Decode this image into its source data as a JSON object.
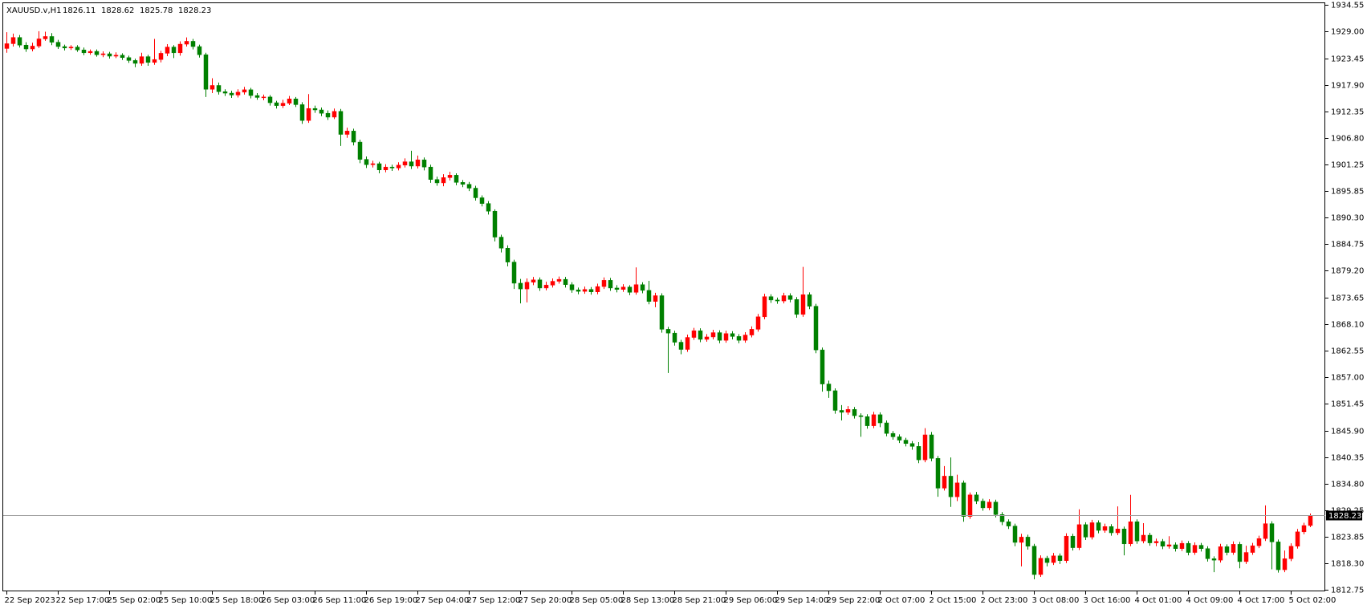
{
  "chart_data": {
    "type": "candlestick",
    "title": "XAUUSD.v,H1",
    "up_color": "#ff0000",
    "down_color": "#008000",
    "grid": false,
    "ylim": [
      1812.4,
      1935.1
    ],
    "yticks": [
      1934.55,
      {
        "value": 1929,
        "label": "1929.00"
      },
      1923.45,
      {
        "value": 1917.9,
        "label": "1917.90"
      },
      1912.35,
      {
        "value": 1906.8,
        "label": "1906.80"
      },
      1901.25,
      1895.85,
      {
        "value": 1890.3,
        "label": "1890.30"
      },
      1884.75,
      {
        "value": 1879.2,
        "label": "1879.20"
      },
      1873.65,
      {
        "value": 1868.1,
        "label": "1868.10"
      },
      1862.55,
      {
        "value": 1857,
        "label": "1857.00"
      },
      1851.45,
      {
        "value": 1845.9,
        "label": "1845.90"
      },
      1840.35,
      {
        "value": 1834.8,
        "label": "1834.80"
      },
      1829.25,
      1823.85,
      {
        "value": 1818.3,
        "label": "1818.30"
      },
      1812.75
    ],
    "categories": [
      "22 Sep 2023",
      null,
      null,
      null,
      null,
      null,
      null,
      null,
      "22 Sep 17:00",
      null,
      null,
      null,
      null,
      null,
      null,
      null,
      "25 Sep 02:00",
      null,
      null,
      null,
      null,
      null,
      null,
      null,
      "25 Sep 10:00",
      null,
      null,
      null,
      null,
      null,
      null,
      null,
      "25 Sep 18:00",
      null,
      null,
      null,
      null,
      null,
      null,
      null,
      "26 Sep 03:00",
      null,
      null,
      null,
      null,
      null,
      null,
      null,
      "26 Sep 11:00",
      null,
      null,
      null,
      null,
      null,
      null,
      null,
      "26 Sep 19:00",
      null,
      null,
      null,
      null,
      null,
      null,
      null,
      "27 Sep 04:00",
      null,
      null,
      null,
      null,
      null,
      null,
      null,
      "27 Sep 12:00",
      null,
      null,
      null,
      null,
      null,
      null,
      null,
      "27 Sep 20:00",
      null,
      null,
      null,
      null,
      null,
      null,
      null,
      "28 Sep 05:00",
      null,
      null,
      null,
      null,
      null,
      null,
      null,
      "28 Sep 13:00",
      null,
      null,
      null,
      null,
      null,
      null,
      null,
      "28 Sep 21:00",
      null,
      null,
      null,
      null,
      null,
      null,
      null,
      "29 Sep 06:00",
      null,
      null,
      null,
      null,
      null,
      null,
      null,
      "29 Sep 14:00",
      null,
      null,
      null,
      null,
      null,
      null,
      null,
      "29 Sep 22:00",
      null,
      null,
      null,
      null,
      null,
      null,
      null,
      "2 Oct 07:00",
      null,
      null,
      null,
      null,
      null,
      null,
      null,
      "2 Oct 15:00",
      null,
      null,
      null,
      null,
      null,
      null,
      null,
      "2 Oct 23:00",
      null,
      null,
      null,
      null,
      null,
      null,
      null,
      "3 Oct 08:00",
      null,
      null,
      null,
      null,
      null,
      null,
      null,
      "3 Oct 16:00",
      null,
      null,
      null,
      null,
      null,
      null,
      null,
      "4 Oct 01:00",
      null,
      null,
      null,
      null,
      null,
      null,
      null,
      "4 Oct 09:00",
      null,
      null,
      null,
      null,
      null,
      null,
      null,
      "4 Oct 17:00",
      null,
      null,
      null,
      null,
      null,
      null,
      null,
      "5 Oct 02:00",
      null,
      null,
      null
    ],
    "open": [
      1925.5,
      1926.5,
      1927.8,
      1926.2,
      1925.4,
      1926.0,
      1927.5,
      1928.0,
      1926.8,
      1925.9,
      1925.6,
      1925.8,
      1925.2,
      1924.6,
      1924.9,
      1924.2,
      1924.4,
      1923.9,
      1924.1,
      1923.6,
      1923.0,
      1922.4,
      1923.8,
      1922.6,
      1923.2,
      1924.5,
      1925.8,
      1924.6,
      1926.4,
      1927.0,
      1925.9,
      1924.2,
      1917.0,
      1917.8,
      1916.5,
      1916.2,
      1915.8,
      1916.4,
      1916.9,
      1915.7,
      1915.3,
      1915.4,
      1914.2,
      1913.6,
      1914.1,
      1915.0,
      1913.8,
      1910.5,
      1913.0,
      1912.7,
      1912.0,
      1911.2,
      1912.4,
      1907.6,
      1908.3,
      1906.0,
      1902.4,
      1901.3,
      1901.5,
      1900.2,
      1900.8,
      1900.6,
      1901.2,
      1901.9,
      1901.0,
      1902.3,
      1900.8,
      1898.2,
      1897.5,
      1898.6,
      1899.1,
      1897.6,
      1897.2,
      1896.4,
      1894.4,
      1893.2,
      1891.6,
      1886.2,
      1883.9,
      1881.0,
      1876.6,
      1875.4,
      1876.8,
      1877.3,
      1875.6,
      1876.2,
      1877.0,
      1877.4,
      1876.3,
      1875.2,
      1874.9,
      1875.3,
      1874.8,
      1875.9,
      1877.2,
      1875.6,
      1875.3,
      1875.8,
      1874.7,
      1876.3,
      1875.1,
      1872.8,
      1874.0,
      1867.0,
      1866.2,
      1864.3,
      1862.8,
      1865.3,
      1866.7,
      1864.9,
      1865.4,
      1866.3,
      1864.7,
      1866.1,
      1865.5,
      1864.7,
      1865.8,
      1867.0,
      1869.6,
      1873.8,
      1873.1,
      1872.9,
      1874.0,
      1873.2,
      1870.1,
      1874.2,
      1871.8,
      1862.7,
      1855.6,
      1854.2,
      1850.1,
      1849.7,
      1850.3,
      1849.0,
      1848.8,
      1846.9,
      1849.2,
      1847.5,
      1845.3,
      1844.6,
      1843.9,
      1843.2,
      1842.6,
      1839.8,
      1845.0,
      1840.1,
      1833.9,
      1836.4,
      1832.1,
      1835.0,
      1828.0,
      1832.5,
      1831.2,
      1829.8,
      1831.0,
      1828.4,
      1826.9,
      1826.0,
      1822.6,
      1823.7,
      1821.8,
      1815.9,
      1819.3,
      1818.4,
      1819.8,
      1818.8,
      1823.9,
      1821.5,
      1826.3,
      1823.7,
      1826.7,
      1825.1,
      1825.9,
      1824.6,
      1825.4,
      1822.3,
      1826.9,
      1822.9,
      1824.1,
      1822.5,
      1822.8,
      1821.8,
      1822.1,
      1821.3,
      1822.4,
      1820.5,
      1822.0,
      1821.3,
      1819.2,
      1818.9,
      1821.7,
      1820.5,
      1822.2,
      1818.6,
      1820.5,
      1821.9,
      1823.4,
      1826.5,
      1822.7,
      1816.9,
      1819.2,
      1821.8,
      1824.8,
      1826.11
    ],
    "high": [
      1928.9,
      1928.6,
      1928.3,
      1926.8,
      1926.7,
      1929.1,
      1929.0,
      1928.7,
      1927.3,
      1926.3,
      1926.2,
      1926.2,
      1925.7,
      1925.3,
      1925.3,
      1924.9,
      1924.8,
      1924.7,
      1924.5,
      1924.0,
      1923.4,
      1924.6,
      1924.2,
      1927.5,
      1925.0,
      1926.4,
      1926.2,
      1927.0,
      1927.8,
      1927.5,
      1926.3,
      1924.6,
      1919.3,
      1918.4,
      1917.0,
      1916.7,
      1917.0,
      1917.5,
      1917.3,
      1916.2,
      1915.9,
      1915.8,
      1914.6,
      1914.8,
      1915.6,
      1915.4,
      1914.3,
      1916.0,
      1913.6,
      1913.2,
      1912.6,
      1913.0,
      1912.9,
      1909.0,
      1908.8,
      1906.5,
      1903.0,
      1902.1,
      1901.9,
      1901.4,
      1901.3,
      1901.8,
      1902.6,
      1904.2,
      1903.2,
      1902.8,
      1901.3,
      1898.8,
      1899.3,
      1899.8,
      1899.5,
      1898.1,
      1897.7,
      1896.9,
      1894.9,
      1893.7,
      1892.0,
      1886.7,
      1884.5,
      1881.5,
      1877.5,
      1877.6,
      1877.9,
      1877.8,
      1876.9,
      1877.6,
      1878.0,
      1877.9,
      1876.8,
      1875.7,
      1875.9,
      1875.8,
      1876.5,
      1877.8,
      1877.7,
      1876.2,
      1876.4,
      1876.2,
      1879.9,
      1876.8,
      1877.1,
      1874.6,
      1874.5,
      1867.5,
      1866.7,
      1864.8,
      1865.9,
      1867.3,
      1867.2,
      1866.0,
      1866.9,
      1866.8,
      1866.7,
      1866.6,
      1866.0,
      1866.4,
      1867.6,
      1870.2,
      1874.4,
      1874.3,
      1873.6,
      1874.6,
      1874.5,
      1873.7,
      1880.0,
      1874.7,
      1872.3,
      1863.2,
      1856.3,
      1854.7,
      1851.2,
      1851.0,
      1850.8,
      1849.5,
      1849.3,
      1849.8,
      1849.7,
      1848.0,
      1845.8,
      1845.1,
      1844.4,
      1843.7,
      1843.5,
      1846.4,
      1845.6,
      1840.6,
      1838.5,
      1840.3,
      1836.7,
      1835.5,
      1833.0,
      1833.1,
      1831.7,
      1831.6,
      1831.5,
      1828.9,
      1827.4,
      1826.5,
      1824.4,
      1824.2,
      1822.3,
      1819.9,
      1819.8,
      1820.4,
      1820.3,
      1824.5,
      1824.4,
      1829.5,
      1826.8,
      1827.3,
      1827.2,
      1826.5,
      1826.4,
      1830.1,
      1825.9,
      1832.5,
      1827.4,
      1826.6,
      1824.6,
      1823.4,
      1823.3,
      1823.9,
      1822.6,
      1823.0,
      1822.9,
      1822.6,
      1822.5,
      1821.8,
      1819.7,
      1822.3,
      1822.2,
      1822.8,
      1822.7,
      1821.9,
      1822.5,
      1824.0,
      1830.3,
      1827.0,
      1823.2,
      1820.9,
      1822.4,
      1825.4,
      1826.7,
      1828.62
    ],
    "low": [
      1924.6,
      1925.9,
      1925.7,
      1924.8,
      1924.9,
      1925.6,
      1927.1,
      1926.2,
      1925.4,
      1925.1,
      1925.2,
      1924.8,
      1924.1,
      1924.2,
      1923.8,
      1923.7,
      1923.4,
      1923.5,
      1923.1,
      1922.5,
      1921.6,
      1921.9,
      1921.9,
      1922.1,
      1922.6,
      1923.9,
      1923.5,
      1924.0,
      1925.9,
      1925.3,
      1923.6,
      1915.4,
      1916.2,
      1915.9,
      1915.6,
      1915.2,
      1915.3,
      1915.9,
      1915.1,
      1914.8,
      1914.7,
      1913.6,
      1913.0,
      1913.1,
      1913.7,
      1913.3,
      1909.8,
      1910.0,
      1912.1,
      1911.4,
      1910.6,
      1910.8,
      1905.2,
      1906.9,
      1905.3,
      1901.6,
      1900.6,
      1900.7,
      1899.5,
      1899.7,
      1900.0,
      1900.1,
      1900.7,
      1900.4,
      1900.5,
      1900.1,
      1897.5,
      1896.9,
      1896.8,
      1898.0,
      1897.0,
      1896.6,
      1895.8,
      1893.8,
      1892.6,
      1890.9,
      1885.3,
      1883.0,
      1880.1,
      1875.4,
      1872.4,
      1872.6,
      1876.2,
      1875.0,
      1875.1,
      1875.7,
      1876.5,
      1875.7,
      1874.6,
      1874.3,
      1874.4,
      1874.2,
      1874.3,
      1875.4,
      1875.0,
      1874.7,
      1874.8,
      1874.1,
      1874.2,
      1874.5,
      1872.2,
      1871.6,
      1866.3,
      1857.9,
      1863.6,
      1861.8,
      1862.3,
      1864.8,
      1864.3,
      1864.4,
      1864.9,
      1864.1,
      1864.2,
      1864.9,
      1864.1,
      1864.2,
      1865.3,
      1866.5,
      1869.1,
      1872.5,
      1872.3,
      1872.4,
      1872.6,
      1869.4,
      1869.6,
      1871.2,
      1862.0,
      1854.0,
      1852.7,
      1849.4,
      1848.0,
      1849.2,
      1848.4,
      1844.6,
      1846.3,
      1846.4,
      1846.6,
      1844.7,
      1844.0,
      1843.3,
      1842.6,
      1841.9,
      1839.1,
      1839.3,
      1839.5,
      1832.1,
      1833.4,
      1830.0,
      1831.2,
      1826.9,
      1827.5,
      1830.6,
      1829.2,
      1829.3,
      1827.8,
      1826.2,
      1825.4,
      1821.8,
      1817.6,
      1821.1,
      1814.9,
      1815.4,
      1817.6,
      1817.9,
      1818.1,
      1818.3,
      1820.9,
      1821.0,
      1823.1,
      1823.2,
      1824.5,
      1824.6,
      1824.0,
      1824.1,
      1819.9,
      1821.8,
      1822.3,
      1822.4,
      1821.9,
      1821.8,
      1821.2,
      1821.3,
      1820.7,
      1820.8,
      1819.9,
      1820.0,
      1820.7,
      1818.6,
      1816.4,
      1818.4,
      1819.9,
      1820.0,
      1817.2,
      1818.1,
      1820.0,
      1821.4,
      1822.9,
      1817.0,
      1816.3,
      1816.4,
      1818.7,
      1821.3,
      1824.3,
      1825.78
    ],
    "close": [
      1926.5,
      1927.8,
      1926.2,
      1925.4,
      1926.0,
      1927.5,
      1928.0,
      1926.8,
      1925.9,
      1925.6,
      1925.8,
      1925.2,
      1924.6,
      1924.9,
      1924.2,
      1924.4,
      1923.9,
      1924.1,
      1923.6,
      1923.0,
      1922.4,
      1923.8,
      1922.6,
      1923.2,
      1924.5,
      1925.8,
      1924.6,
      1926.4,
      1927.0,
      1925.9,
      1924.2,
      1917.0,
      1917.8,
      1916.5,
      1916.2,
      1915.8,
      1916.4,
      1916.9,
      1915.7,
      1915.3,
      1915.4,
      1914.2,
      1913.6,
      1914.1,
      1915.0,
      1913.8,
      1910.5,
      1913.0,
      1912.7,
      1912.0,
      1911.2,
      1912.4,
      1907.6,
      1908.3,
      1906.0,
      1902.4,
      1901.3,
      1901.5,
      1900.2,
      1900.8,
      1900.6,
      1901.2,
      1901.9,
      1901.0,
      1902.3,
      1900.8,
      1898.2,
      1897.5,
      1898.6,
      1899.1,
      1897.6,
      1897.2,
      1896.4,
      1894.4,
      1893.2,
      1891.6,
      1886.2,
      1883.9,
      1881.0,
      1876.6,
      1875.4,
      1876.8,
      1877.3,
      1875.6,
      1876.2,
      1877.0,
      1877.4,
      1876.3,
      1875.2,
      1874.9,
      1875.3,
      1874.8,
      1875.9,
      1877.2,
      1875.6,
      1875.3,
      1875.8,
      1874.7,
      1876.3,
      1875.1,
      1872.8,
      1874.0,
      1867.0,
      1866.2,
      1864.3,
      1862.8,
      1865.3,
      1866.7,
      1864.9,
      1865.4,
      1866.3,
      1864.7,
      1866.1,
      1865.5,
      1864.7,
      1865.8,
      1867.0,
      1869.6,
      1873.8,
      1873.1,
      1872.9,
      1874.0,
      1873.2,
      1870.1,
      1874.2,
      1871.8,
      1862.7,
      1855.6,
      1854.2,
      1850.1,
      1849.7,
      1850.3,
      1849.0,
      1848.8,
      1846.9,
      1849.2,
      1847.5,
      1845.3,
      1844.6,
      1843.9,
      1843.2,
      1842.6,
      1839.8,
      1845.0,
      1840.1,
      1833.9,
      1836.4,
      1832.1,
      1835.0,
      1828.0,
      1832.5,
      1831.2,
      1829.8,
      1831.0,
      1828.4,
      1826.9,
      1826.0,
      1822.6,
      1823.7,
      1821.8,
      1815.9,
      1819.3,
      1818.4,
      1819.8,
      1818.8,
      1823.9,
      1821.5,
      1826.3,
      1823.7,
      1826.7,
      1825.1,
      1825.9,
      1824.6,
      1825.4,
      1822.3,
      1826.9,
      1822.9,
      1824.1,
      1822.5,
      1822.8,
      1821.8,
      1822.1,
      1821.3,
      1822.4,
      1820.5,
      1822.0,
      1821.3,
      1819.2,
      1818.9,
      1821.7,
      1820.5,
      1822.2,
      1818.6,
      1820.5,
      1821.9,
      1823.4,
      1826.5,
      1822.7,
      1816.9,
      1819.2,
      1821.8,
      1824.8,
      1826.11,
      1828.23
    ]
  }
}
